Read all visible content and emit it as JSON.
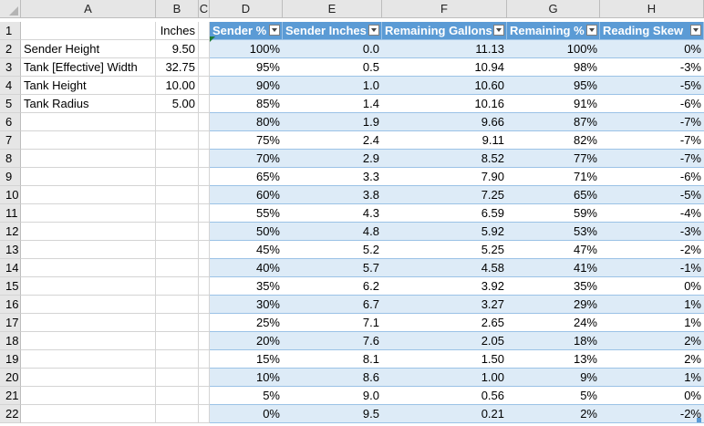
{
  "columns": [
    "A",
    "B",
    "C",
    "D",
    "E",
    "F",
    "G",
    "H"
  ],
  "row_numbers": [
    "1",
    "2",
    "3",
    "4",
    "5",
    "6",
    "7",
    "8",
    "9",
    "10",
    "11",
    "12",
    "13",
    "14",
    "15",
    "16",
    "17",
    "18",
    "19",
    "20",
    "21",
    "22"
  ],
  "params": {
    "unit_header": "Inches",
    "items": [
      {
        "label": "Sender Height",
        "value": "9.50"
      },
      {
        "label": "Tank [Effective] Width",
        "value": "32.75"
      },
      {
        "label": "Tank Height",
        "value": "10.00"
      },
      {
        "label": "Tank Radius",
        "value": "5.00"
      }
    ]
  },
  "table": {
    "headers": [
      "Sender %",
      "Sender Inches",
      "Remaining Gallons",
      "Remaining %",
      "Reading Skew"
    ],
    "rows": [
      [
        "100%",
        "0.0",
        "11.13",
        "100%",
        "0%"
      ],
      [
        "95%",
        "0.5",
        "10.94",
        "98%",
        "-3%"
      ],
      [
        "90%",
        "1.0",
        "10.60",
        "95%",
        "-5%"
      ],
      [
        "85%",
        "1.4",
        "10.16",
        "91%",
        "-6%"
      ],
      [
        "80%",
        "1.9",
        "9.66",
        "87%",
        "-7%"
      ],
      [
        "75%",
        "2.4",
        "9.11",
        "82%",
        "-7%"
      ],
      [
        "70%",
        "2.9",
        "8.52",
        "77%",
        "-7%"
      ],
      [
        "65%",
        "3.3",
        "7.90",
        "71%",
        "-6%"
      ],
      [
        "60%",
        "3.8",
        "7.25",
        "65%",
        "-5%"
      ],
      [
        "55%",
        "4.3",
        "6.59",
        "59%",
        "-4%"
      ],
      [
        "50%",
        "4.8",
        "5.92",
        "53%",
        "-3%"
      ],
      [
        "45%",
        "5.2",
        "5.25",
        "47%",
        "-2%"
      ],
      [
        "40%",
        "5.7",
        "4.58",
        "41%",
        "-1%"
      ],
      [
        "35%",
        "6.2",
        "3.92",
        "35%",
        "0%"
      ],
      [
        "30%",
        "6.7",
        "3.27",
        "29%",
        "1%"
      ],
      [
        "25%",
        "7.1",
        "2.65",
        "24%",
        "1%"
      ],
      [
        "20%",
        "7.6",
        "2.05",
        "18%",
        "2%"
      ],
      [
        "15%",
        "8.1",
        "1.50",
        "13%",
        "2%"
      ],
      [
        "10%",
        "8.6",
        "1.00",
        "9%",
        "1%"
      ],
      [
        "5%",
        "9.0",
        "0.56",
        "5%",
        "0%"
      ],
      [
        "0%",
        "9.5",
        "0.21",
        "2%",
        "-2%"
      ]
    ]
  },
  "colors": {
    "table_header": "#5b9bd5",
    "band": "#ddebf7",
    "grid": "#d4d4d4",
    "header_bg": "#e6e6e6"
  }
}
